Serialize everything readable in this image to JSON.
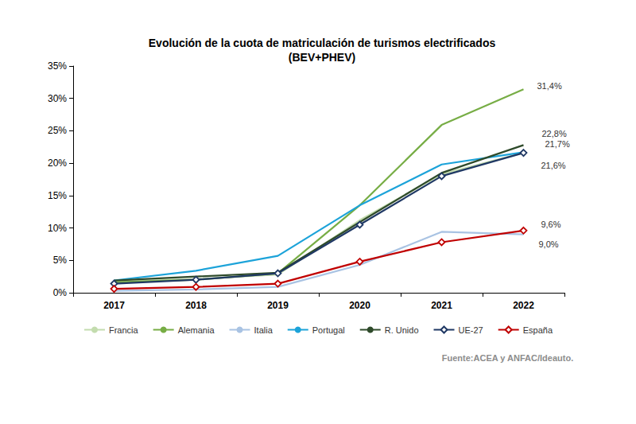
{
  "chart_data": {
    "type": "line",
    "title": "Evolución de la cuota de matriculación de turismos electrificados\n(BEV+PHEV)",
    "source": "Fuente:ACEA y ANFAC/Ideauto.",
    "categories": [
      "2017",
      "2018",
      "2019",
      "2020",
      "2021",
      "2022"
    ],
    "ylim": [
      0,
      35
    ],
    "yticks": [
      {
        "value": 0,
        "label": "0%"
      },
      {
        "value": 5,
        "label": "5%"
      },
      {
        "value": 10,
        "label": "10%"
      },
      {
        "value": 15,
        "label": "15%"
      },
      {
        "value": 20,
        "label": "20%"
      },
      {
        "value": 25,
        "label": "25%"
      },
      {
        "value": 30,
        "label": "30%"
      },
      {
        "value": 35,
        "label": "35%"
      }
    ],
    "grid": false,
    "legend": "bottom",
    "series": [
      {
        "name": "Francia",
        "color": "#c3dcae",
        "marker": "none",
        "values": [
          1.7,
          2.1,
          2.8,
          11.2,
          18.3,
          21.6
        ],
        "value_labels": [
          null,
          null,
          null,
          null,
          null,
          null
        ]
      },
      {
        "name": "Alemania",
        "color": "#77ad45",
        "marker": "none",
        "values": [
          1.6,
          2.0,
          3.0,
          13.5,
          25.9,
          31.4
        ],
        "value_labels": [
          null,
          null,
          null,
          null,
          null,
          "31,4%"
        ]
      },
      {
        "name": "Italia",
        "color": "#a9c3e3",
        "marker": "none",
        "values": [
          0.3,
          0.5,
          0.9,
          4.3,
          9.4,
          9.0
        ],
        "value_labels": [
          null,
          null,
          null,
          null,
          null,
          "9,0%"
        ]
      },
      {
        "name": "Portugal",
        "color": "#1ca3d9",
        "marker": "none",
        "values": [
          1.9,
          3.4,
          5.7,
          13.5,
          19.8,
          21.7
        ],
        "value_labels": [
          null,
          null,
          null,
          null,
          null,
          "21,7%"
        ]
      },
      {
        "name": "R. Unido",
        "color": "#2e4a2a",
        "marker": "none",
        "values": [
          1.9,
          2.5,
          3.1,
          10.9,
          18.5,
          22.8
        ],
        "value_labels": [
          null,
          null,
          null,
          null,
          null,
          "22,8%"
        ]
      },
      {
        "name": "UE-27",
        "color": "#1f3864",
        "marker": "diamond",
        "values": [
          1.4,
          2.0,
          3.0,
          10.5,
          18.0,
          21.6
        ],
        "value_labels": [
          null,
          null,
          null,
          null,
          null,
          "21,6%"
        ]
      },
      {
        "name": "España",
        "color": "#c00000",
        "marker": "diamond",
        "values": [
          0.6,
          0.9,
          1.4,
          4.8,
          7.8,
          9.6
        ],
        "value_labels": [
          null,
          null,
          null,
          null,
          null,
          "9,6%"
        ]
      }
    ]
  }
}
